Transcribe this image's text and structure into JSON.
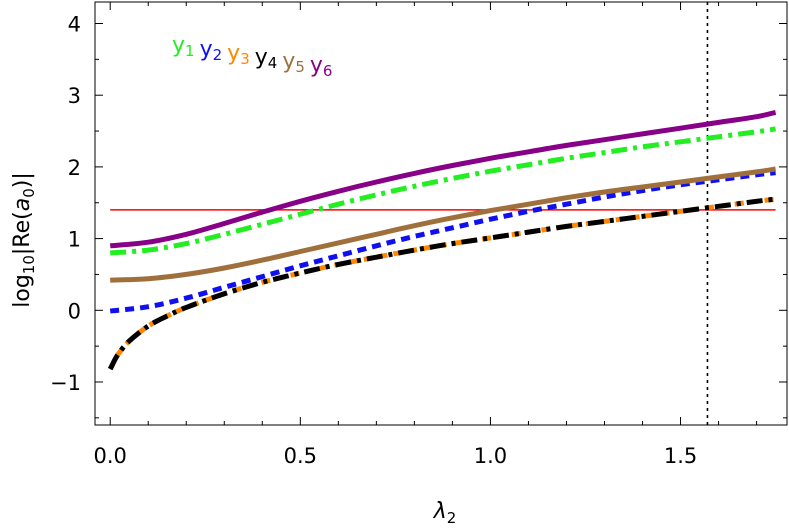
{
  "chart_data": {
    "type": "line",
    "xlabel": "λ",
    "xlabel_sub": "2",
    "ylabel_prefix": "log",
    "ylabel_sub": "10",
    "ylabel_mid": "|Re(",
    "ylabel_var": "a",
    "ylabel_var_sub": "0",
    "ylabel_suffix": ")|",
    "xlim": [
      -0.04,
      1.78
    ],
    "ylim": [
      -1.6,
      4.3
    ],
    "xticks": [
      0.0,
      0.5,
      1.0,
      1.5
    ],
    "xtick_labels": [
      "0.0",
      "0.5",
      "1.0",
      "1.5"
    ],
    "yticks": [
      -1,
      0,
      1,
      2,
      3,
      4
    ],
    "ytick_labels": [
      "−1",
      "0",
      "1",
      "2",
      "3",
      "4"
    ],
    "grid": false,
    "legend_position": "top-left",
    "reference_lines": {
      "horizontal": {
        "y": 1.4,
        "color": "#ff0000"
      },
      "vertical": {
        "x": 1.5708,
        "color": "#000000",
        "style": "dotted"
      }
    },
    "series": [
      {
        "name": "y",
        "sub": "1",
        "color": "#22ee22",
        "style": "dashdot",
        "x": [
          0,
          0.1,
          0.2,
          0.3,
          0.4,
          0.5,
          0.6,
          0.7,
          0.8,
          0.9,
          1.0,
          1.1,
          1.2,
          1.3,
          1.4,
          1.5,
          1.6,
          1.7,
          1.75
        ],
        "values": [
          0.8,
          0.84,
          0.93,
          1.06,
          1.2,
          1.34,
          1.48,
          1.61,
          1.73,
          1.84,
          1.94,
          2.03,
          2.12,
          2.2,
          2.28,
          2.35,
          2.42,
          2.49,
          2.53
        ]
      },
      {
        "name": "y",
        "sub": "2",
        "color": "#1010ee",
        "style": "dashed",
        "x": [
          0,
          0.1,
          0.2,
          0.3,
          0.4,
          0.5,
          0.6,
          0.7,
          0.8,
          0.9,
          1.0,
          1.1,
          1.2,
          1.3,
          1.4,
          1.5,
          1.6,
          1.7,
          1.75
        ],
        "values": [
          -0.01,
          0.05,
          0.17,
          0.32,
          0.47,
          0.62,
          0.76,
          0.9,
          1.03,
          1.15,
          1.27,
          1.38,
          1.48,
          1.58,
          1.67,
          1.75,
          1.82,
          1.89,
          1.92
        ]
      },
      {
        "name": "y",
        "sub": "3",
        "color": "#ff8800",
        "style": "dashed",
        "x": [
          0,
          0.02,
          0.05,
          0.1,
          0.15,
          0.2,
          0.3,
          0.4,
          0.5,
          0.6,
          0.7,
          0.8,
          0.9,
          1.0,
          1.1,
          1.2,
          1.3,
          1.4,
          1.5,
          1.6,
          1.7,
          1.75
        ],
        "values": [
          -0.82,
          -0.62,
          -0.43,
          -0.22,
          -0.08,
          0.04,
          0.23,
          0.39,
          0.52,
          0.64,
          0.74,
          0.84,
          0.93,
          1.01,
          1.09,
          1.17,
          1.24,
          1.31,
          1.38,
          1.45,
          1.52,
          1.55
        ]
      },
      {
        "name": "y",
        "sub": "4",
        "color": "#000000",
        "style": "dashdot",
        "x": [
          0,
          0.02,
          0.05,
          0.1,
          0.15,
          0.2,
          0.3,
          0.4,
          0.5,
          0.6,
          0.7,
          0.8,
          0.9,
          1.0,
          1.1,
          1.2,
          1.3,
          1.4,
          1.5,
          1.6,
          1.7,
          1.75
        ],
        "values": [
          -0.82,
          -0.62,
          -0.43,
          -0.22,
          -0.08,
          0.04,
          0.23,
          0.39,
          0.52,
          0.64,
          0.74,
          0.84,
          0.93,
          1.01,
          1.09,
          1.17,
          1.24,
          1.31,
          1.38,
          1.45,
          1.52,
          1.55
        ]
      },
      {
        "name": "y",
        "sub": "5",
        "color": "#a0703c",
        "style": "solid",
        "x": [
          0,
          0.1,
          0.2,
          0.3,
          0.4,
          0.5,
          0.6,
          0.7,
          0.8,
          0.9,
          1.0,
          1.1,
          1.2,
          1.3,
          1.4,
          1.5,
          1.6,
          1.7,
          1.75
        ],
        "values": [
          0.42,
          0.44,
          0.5,
          0.59,
          0.7,
          0.82,
          0.94,
          1.06,
          1.18,
          1.29,
          1.39,
          1.48,
          1.57,
          1.65,
          1.72,
          1.79,
          1.86,
          1.93,
          1.97
        ]
      },
      {
        "name": "y",
        "sub": "6",
        "color": "#880088",
        "style": "solid",
        "x": [
          0,
          0.1,
          0.2,
          0.3,
          0.4,
          0.5,
          0.6,
          0.7,
          0.8,
          0.9,
          1.0,
          1.1,
          1.2,
          1.3,
          1.4,
          1.5,
          1.6,
          1.7,
          1.75
        ],
        "values": [
          0.9,
          0.95,
          1.06,
          1.21,
          1.37,
          1.52,
          1.66,
          1.79,
          1.91,
          2.02,
          2.12,
          2.21,
          2.3,
          2.38,
          2.46,
          2.54,
          2.62,
          2.7,
          2.76
        ]
      }
    ]
  }
}
